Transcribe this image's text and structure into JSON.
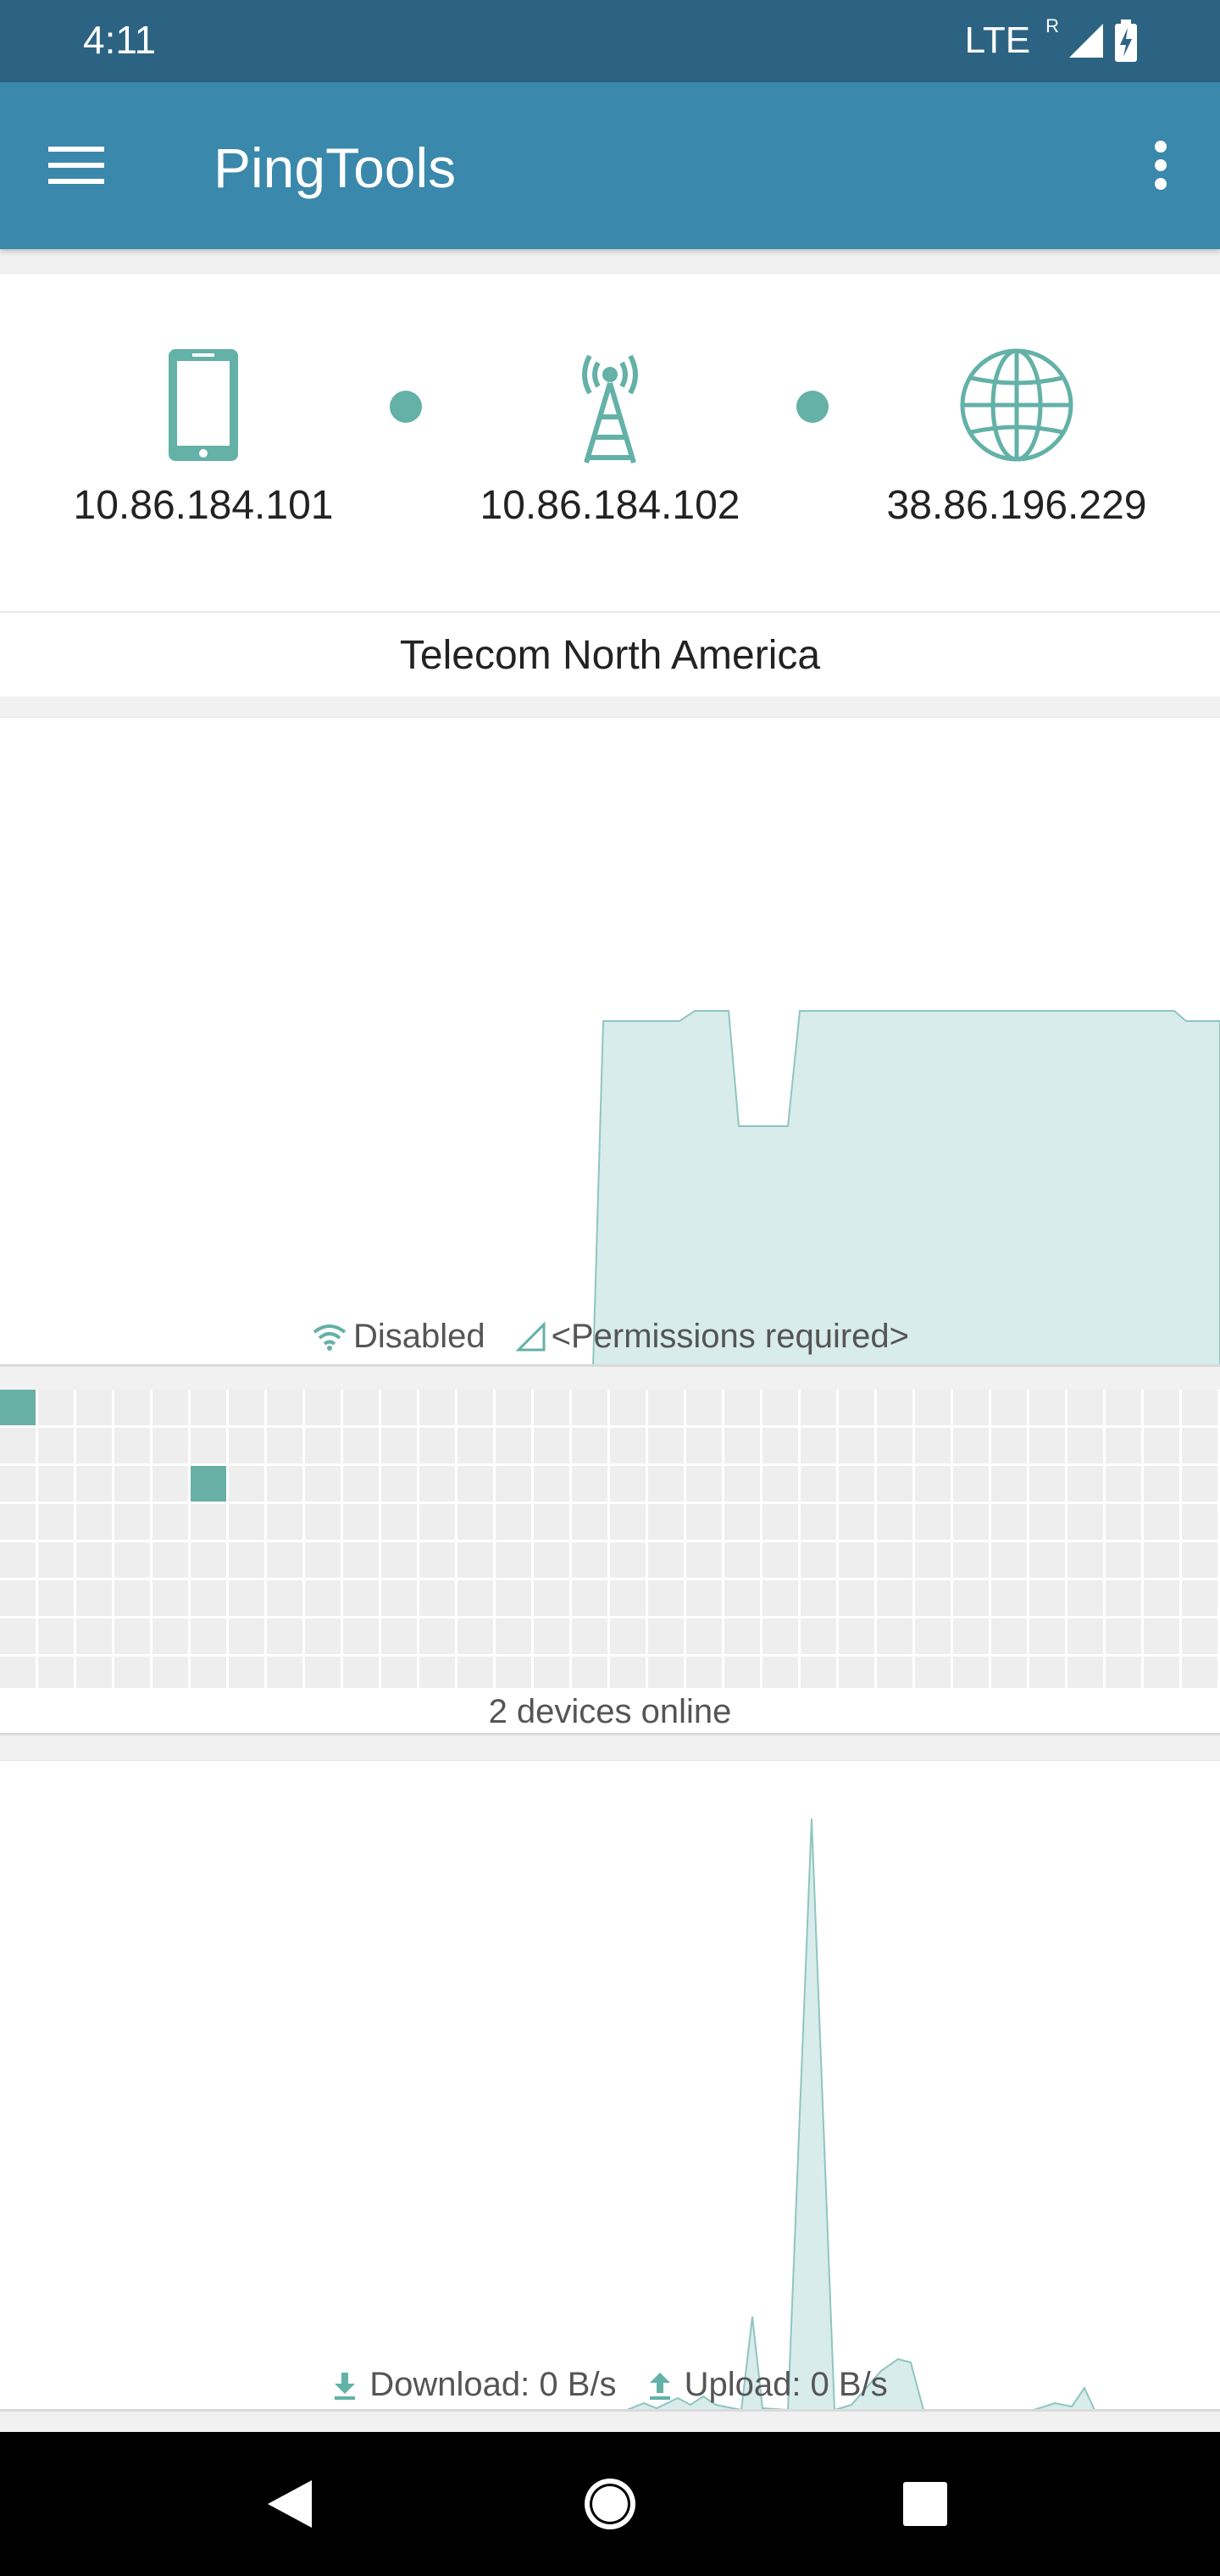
{
  "status_bar": {
    "time": "4:11",
    "network": "LTE",
    "roaming": "R",
    "icons": [
      "signal-icon",
      "battery-charging-icon"
    ]
  },
  "app_bar": {
    "title": "PingTools",
    "icons": [
      "menu-icon",
      "overflow-menu-icon"
    ]
  },
  "route": {
    "device_ip": "10.86.184.101",
    "gateway_ip": "10.86.184.102",
    "external_ip": "38.86.196.229",
    "isp": "Telecom North America",
    "icons": [
      "phone-icon",
      "cell-tower-icon",
      "globe-icon"
    ]
  },
  "wifi": {
    "status_label": "Disabled",
    "signal_label": "<Permissions required>",
    "icons": [
      "wifi-icon",
      "cell-signal-outline-icon"
    ]
  },
  "lan": {
    "devices_label": "2 devices online",
    "online_cells": [
      0,
      71
    ]
  },
  "traffic": {
    "download_label": "Download: 0 B/s",
    "upload_label": "Upload: 0 B/s",
    "icons": [
      "download-icon",
      "upload-icon"
    ]
  },
  "nav": {
    "icons": [
      "back-icon",
      "home-icon",
      "recents-icon"
    ]
  },
  "colors": {
    "status_bar": "#2c6382",
    "app_bar": "#3a88ab",
    "accent": "#63b1a7",
    "chart_fill": "#d8eceb",
    "chart_stroke": "#8fc6bf"
  }
}
